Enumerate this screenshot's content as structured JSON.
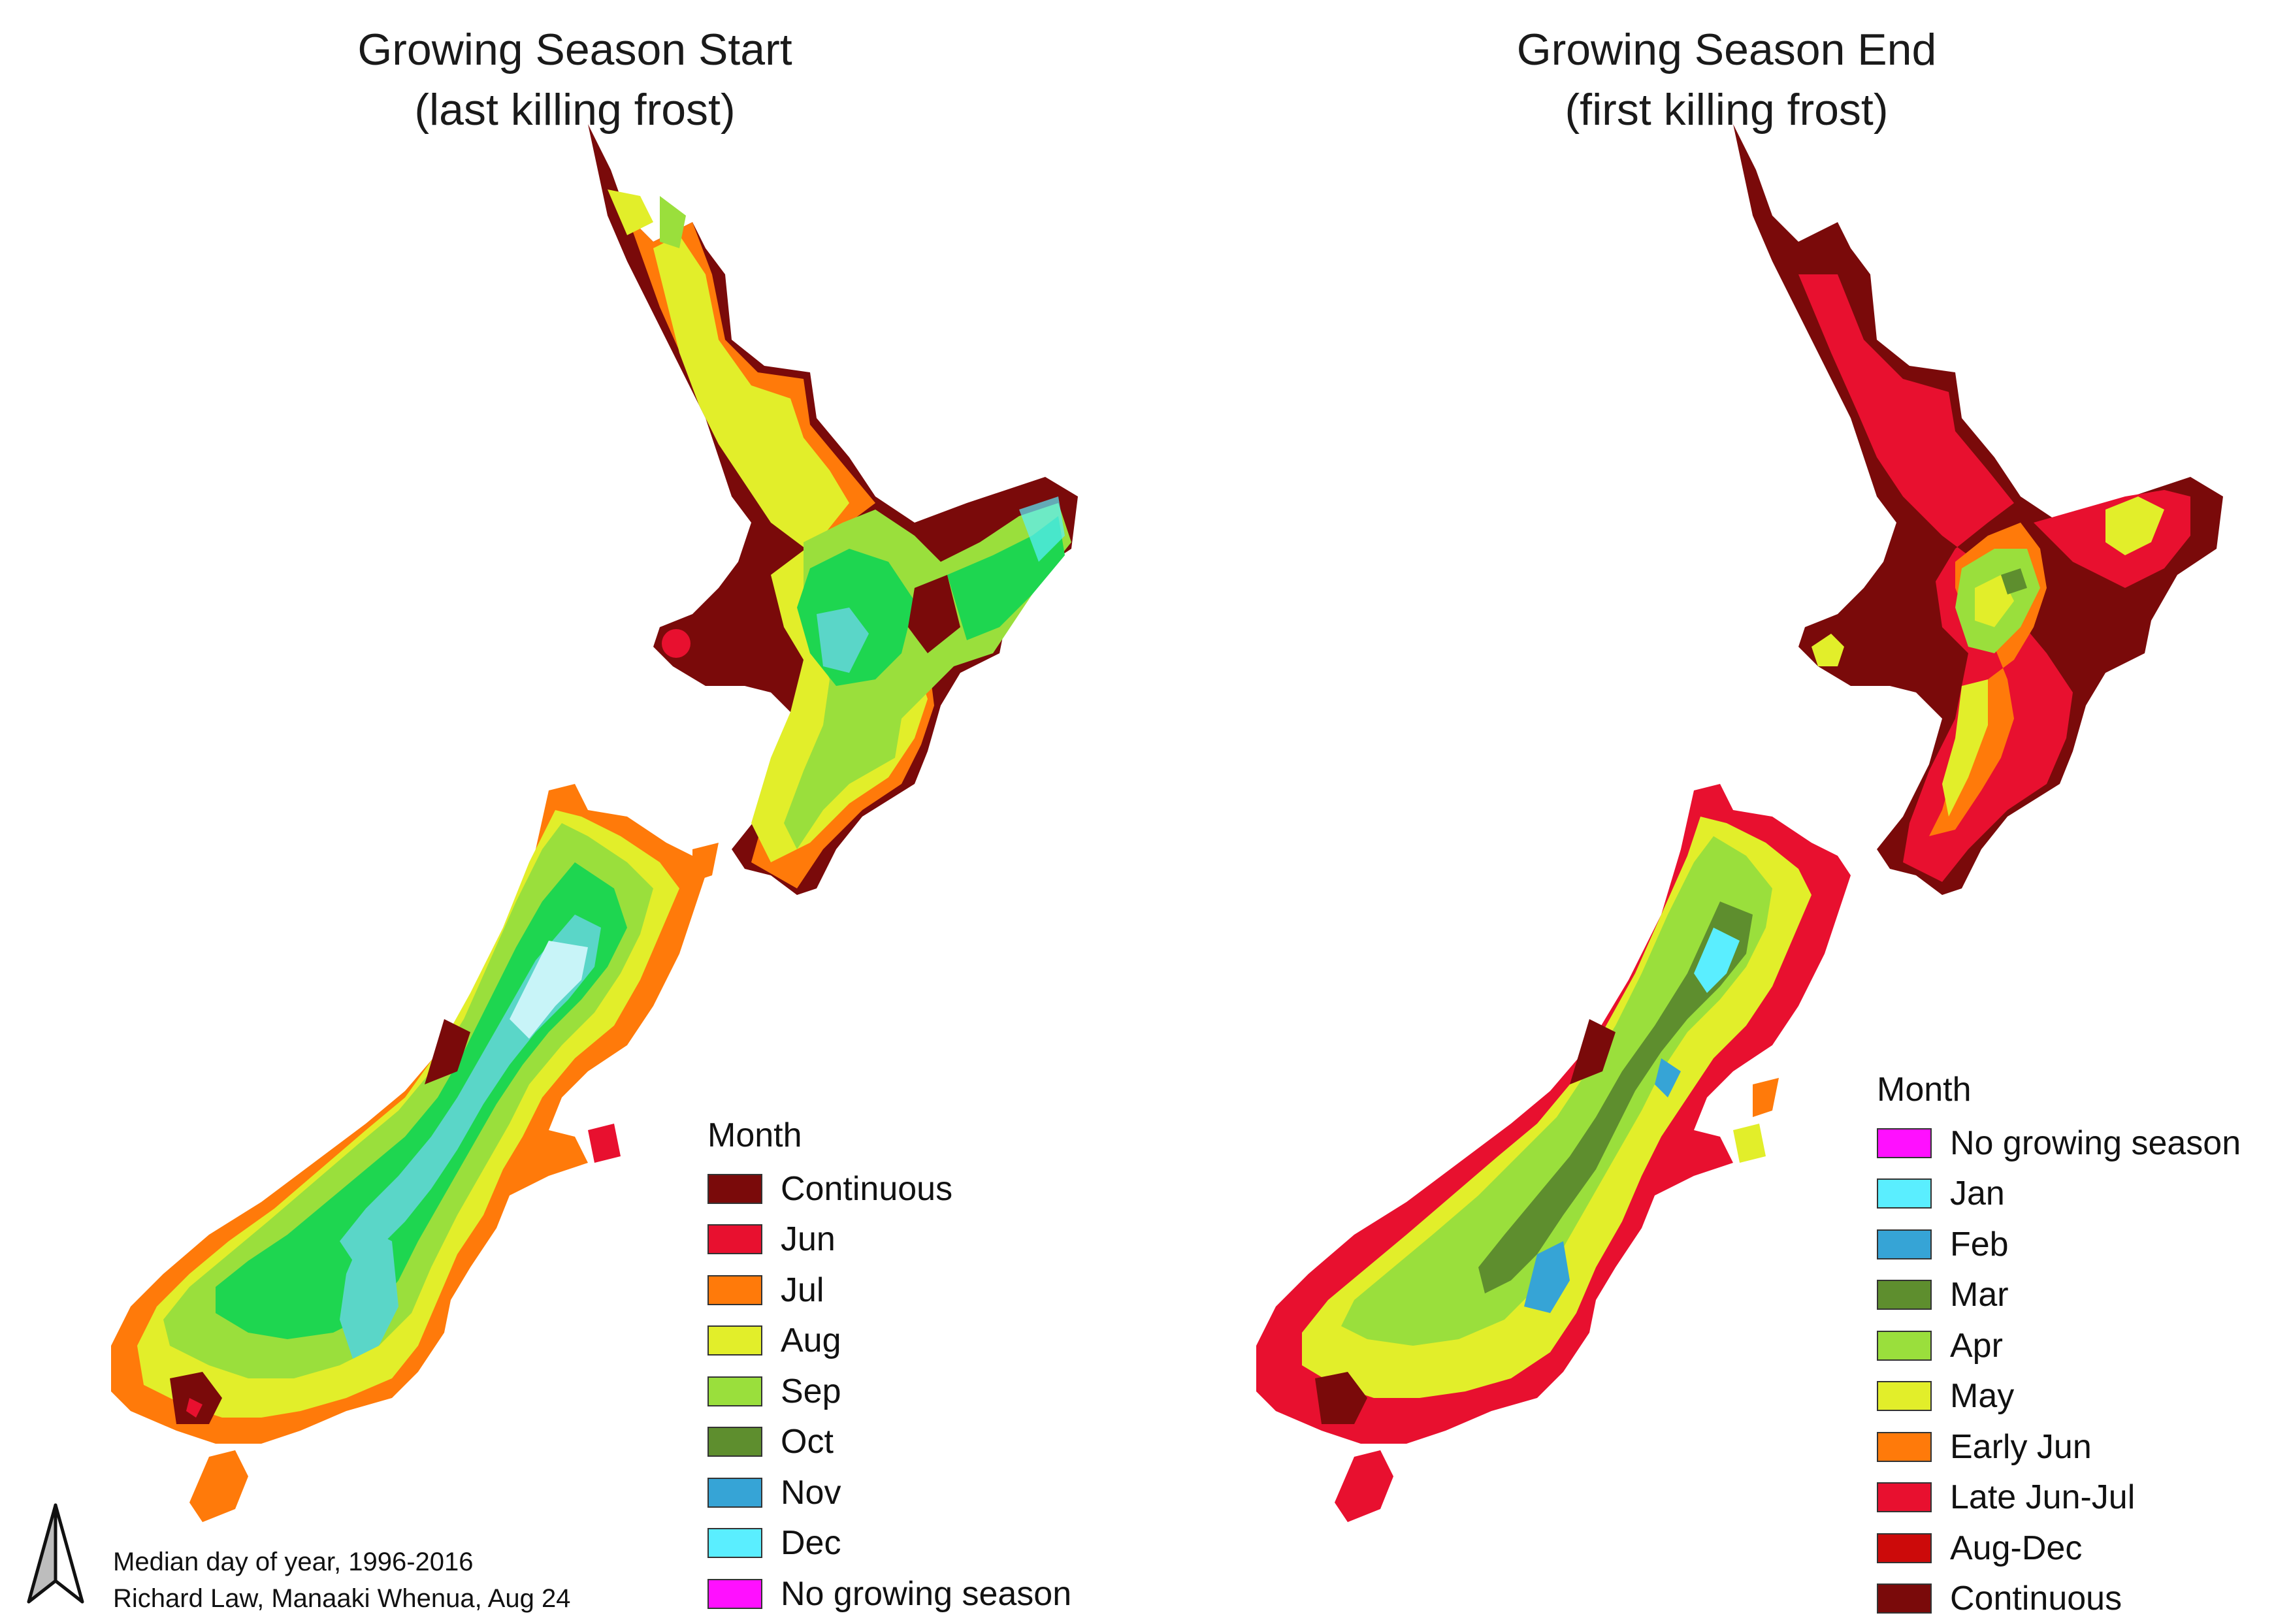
{
  "left_map": {
    "title_line1": "Growing Season Start",
    "title_line2": "(last killing frost)",
    "legend": {
      "title": "Month",
      "items": [
        {
          "label": "Continuous",
          "color": "#7a0a0a"
        },
        {
          "label": "Jun",
          "color": "#e8102f"
        },
        {
          "label": "Jul",
          "color": "#ff7a0a"
        },
        {
          "label": "Aug",
          "color": "#e2ee2a"
        },
        {
          "label": "Sep",
          "color": "#9adf3c"
        },
        {
          "label": "Oct",
          "color": "#5e8e2e"
        },
        {
          "label": "Nov",
          "color": "#36a4d6"
        },
        {
          "label": "Dec",
          "color": "#5aeeff"
        },
        {
          "label": "No growing season",
          "color": "#ff10ff"
        }
      ]
    }
  },
  "right_map": {
    "title_line1": "Growing Season End",
    "title_line2": "(first killing frost)",
    "legend": {
      "title": "Month",
      "items": [
        {
          "label": "No growing season",
          "color": "#ff10ff"
        },
        {
          "label": "Jan",
          "color": "#5aeeff"
        },
        {
          "label": "Feb",
          "color": "#36a4d6"
        },
        {
          "label": "Mar",
          "color": "#5e8e2e"
        },
        {
          "label": "Apr",
          "color": "#9adf3c"
        },
        {
          "label": "May",
          "color": "#e2ee2a"
        },
        {
          "label": "Early Jun",
          "color": "#ff7a0a"
        },
        {
          "label": "Late Jun-Jul",
          "color": "#e8102f"
        },
        {
          "label": "Aug-Dec",
          "color": "#cc0a0a"
        },
        {
          "label": "Continuous",
          "color": "#7a0a0a"
        }
      ]
    }
  },
  "credits": {
    "line1": "Median day of year, 1996-2016",
    "line2": "Richard Law, Manaaki Whenua, Aug 24"
  },
  "north_arrow_icon": "north-arrow-icon"
}
